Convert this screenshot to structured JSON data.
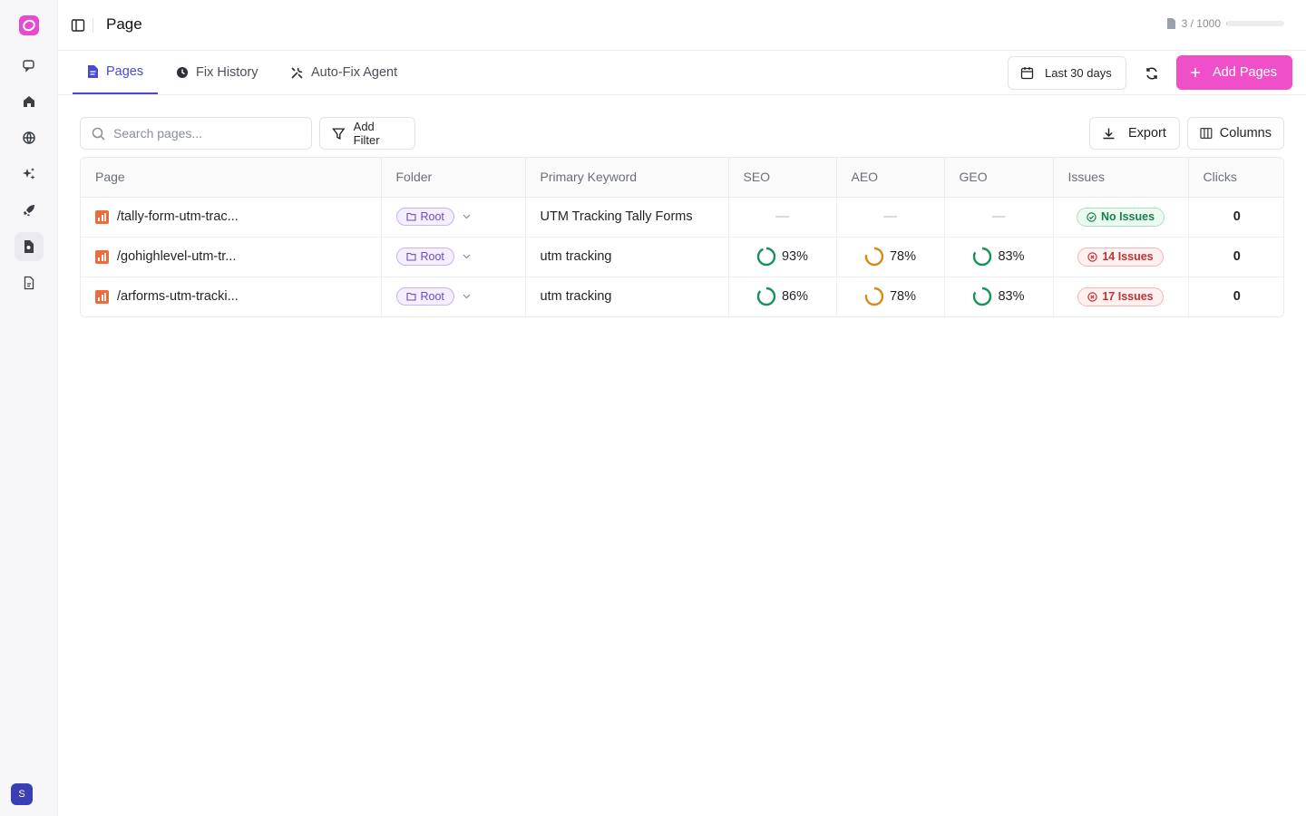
{
  "header": {
    "title": "Page",
    "usage_text": "3 / 1000",
    "usage_fraction": 0.003
  },
  "tabs": [
    {
      "label": "Pages",
      "icon": "file-icon",
      "active": true
    },
    {
      "label": "Fix History",
      "icon": "history-icon",
      "active": false
    },
    {
      "label": "Auto-Fix Agent",
      "icon": "tools-icon",
      "active": false
    }
  ],
  "actions": {
    "date_range": "Last 30 days",
    "add_pages": "Add Pages",
    "export": "Export",
    "columns": "Columns",
    "add_filter": "Add Filter"
  },
  "search": {
    "placeholder": "Search pages..."
  },
  "user": {
    "initial": "S"
  },
  "table": {
    "headers": [
      "Page",
      "Folder",
      "Primary Keyword",
      "SEO",
      "AEO",
      "GEO",
      "Issues",
      "Clicks"
    ],
    "rows": [
      {
        "page": "/tally-form-utm-trac...",
        "folder": "Root",
        "keyword": "UTM Tracking Tally Forms",
        "seo": "—",
        "aeo": "—",
        "geo": "—",
        "seo_value": null,
        "aeo_value": null,
        "geo_value": null,
        "issues": "No Issues",
        "issues_status": "ok",
        "clicks": "0"
      },
      {
        "page": "/gohighlevel-utm-tr...",
        "folder": "Root",
        "keyword": "utm tracking",
        "seo": "93%",
        "aeo": "78%",
        "geo": "83%",
        "seo_value": 93,
        "aeo_value": 78,
        "geo_value": 83,
        "issues": "14 Issues",
        "issues_status": "bad",
        "clicks": "0"
      },
      {
        "page": "/arforms-utm-tracki...",
        "folder": "Root",
        "keyword": "utm tracking",
        "seo": "86%",
        "aeo": "78%",
        "geo": "83%",
        "seo_value": 86,
        "aeo_value": 78,
        "geo_value": 83,
        "issues": "17 Issues",
        "issues_status": "bad",
        "clicks": "0"
      }
    ]
  },
  "colors": {
    "accent": "#4a49d1",
    "primary_button": "#ef4fc8",
    "score_good": "#17925a",
    "score_medium": "#d98a1c"
  }
}
